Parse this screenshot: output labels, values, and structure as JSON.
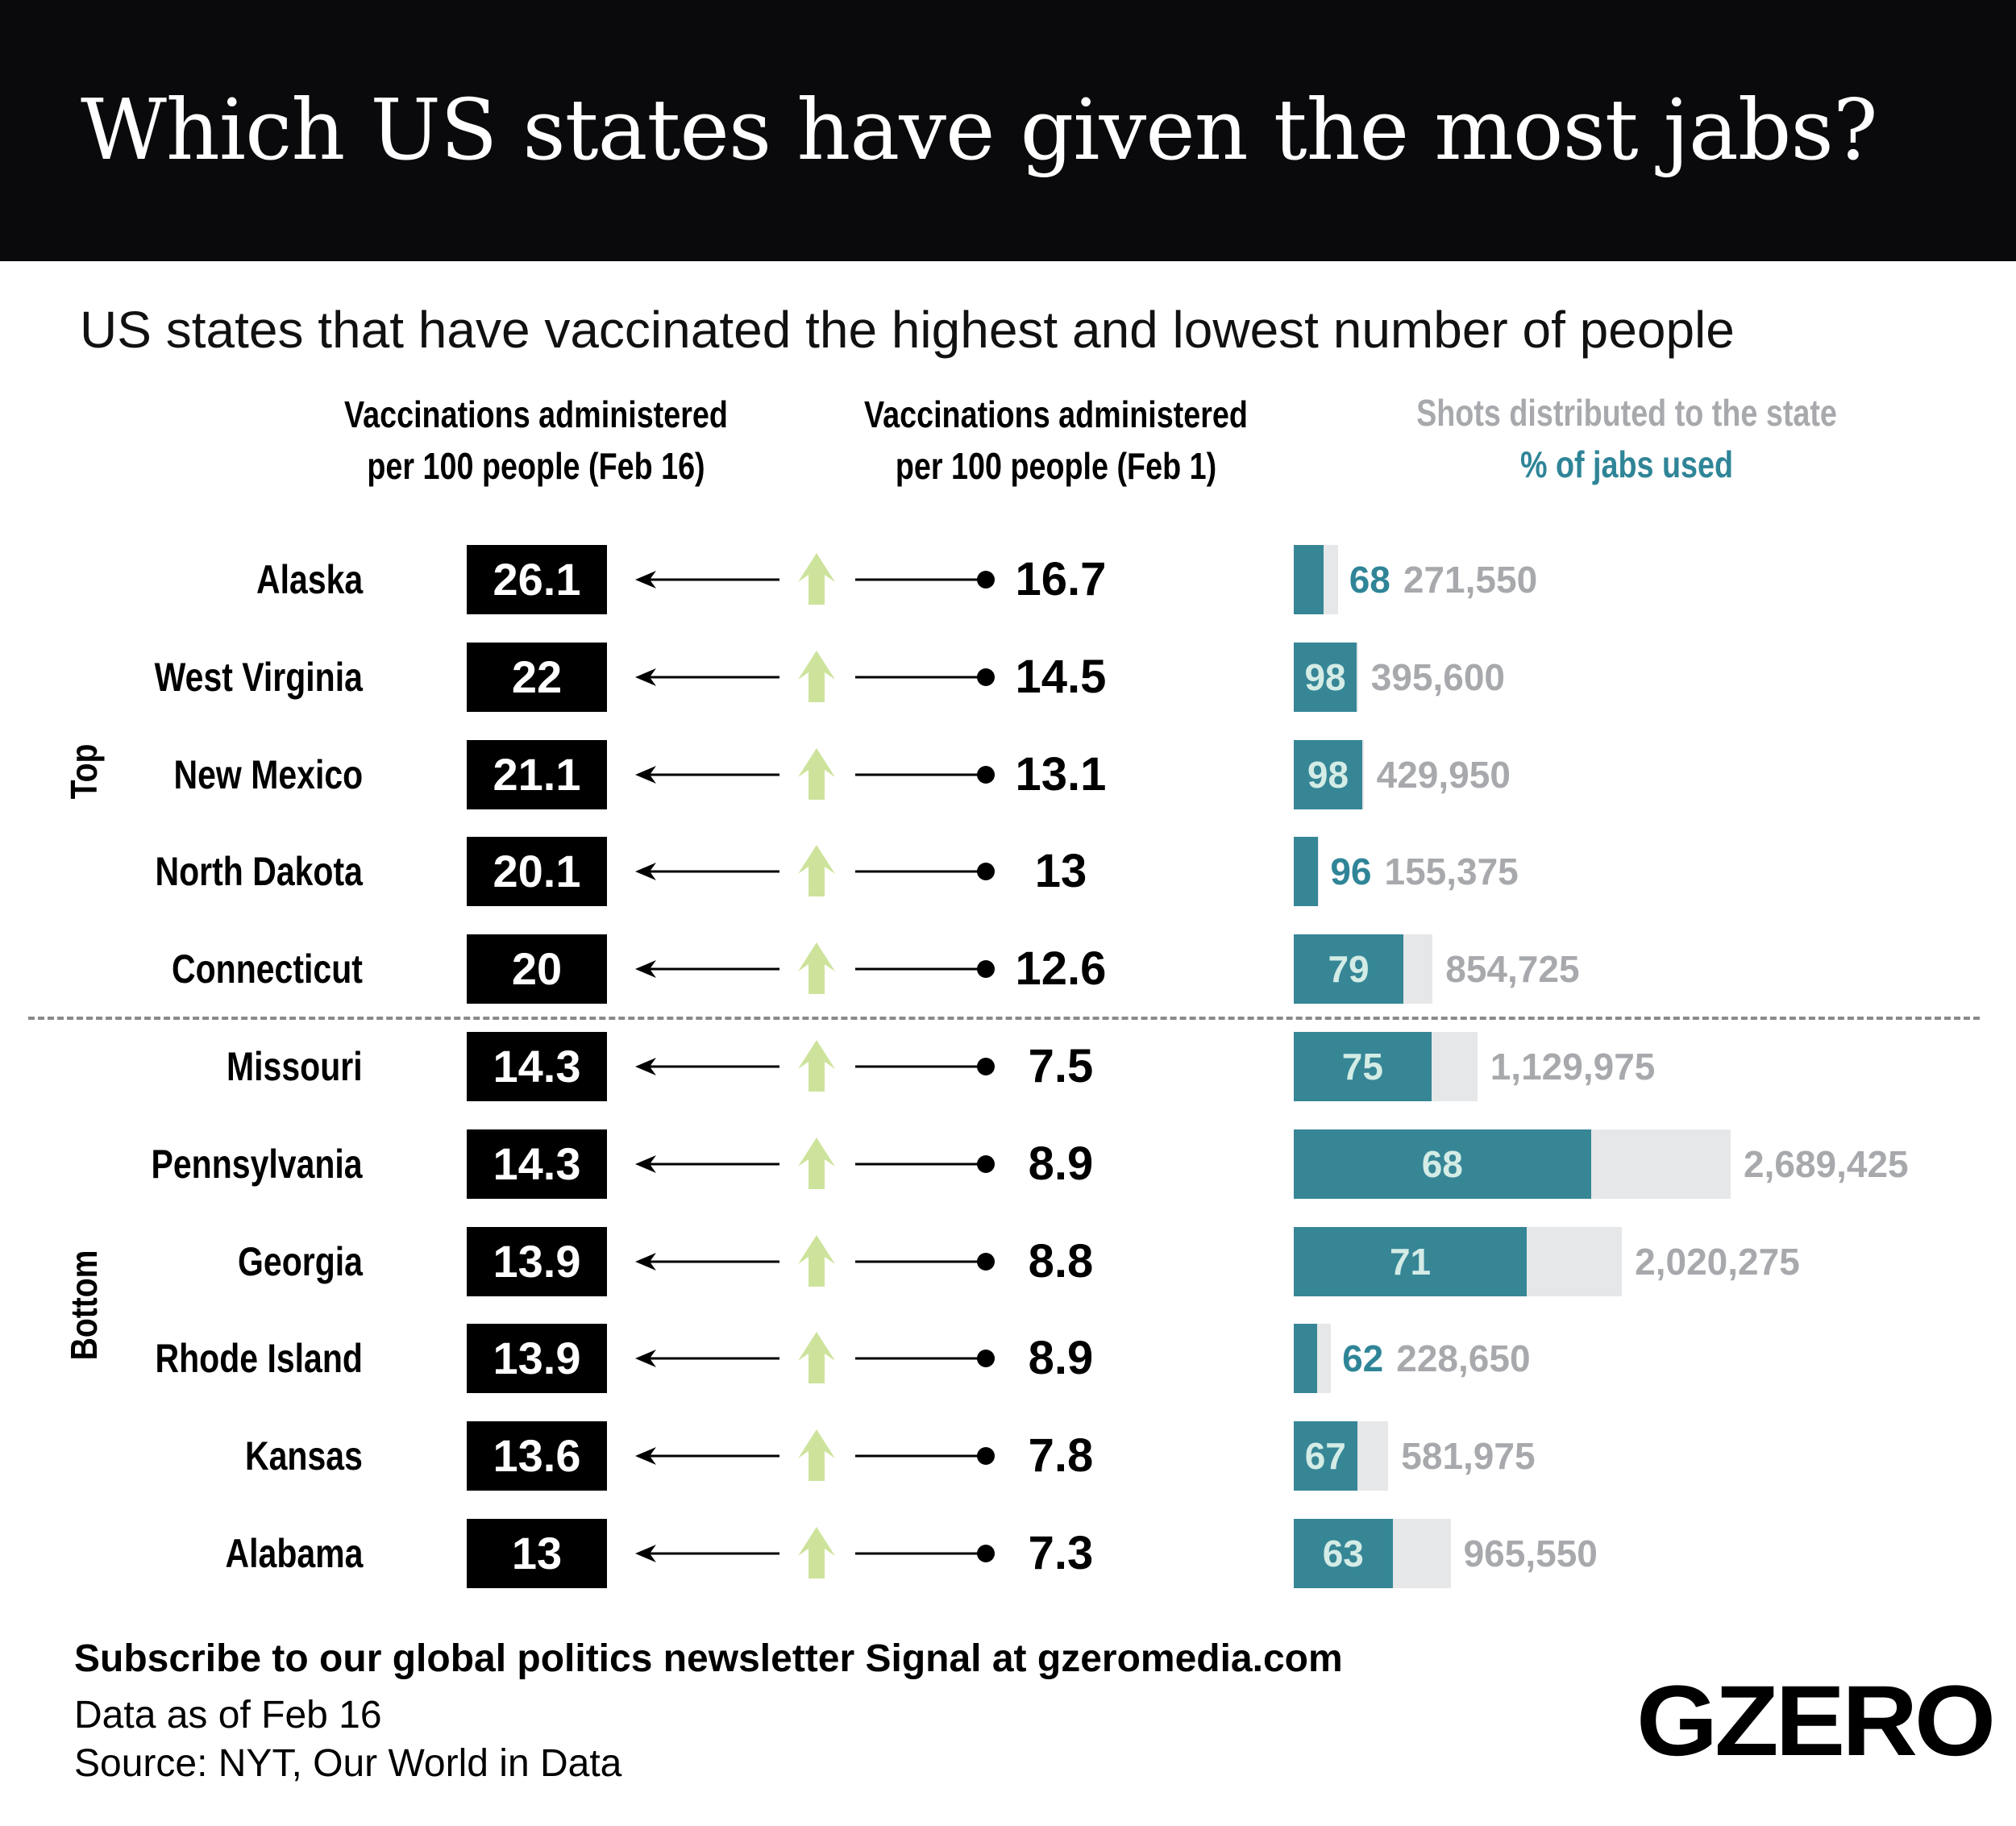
{
  "header": {
    "title": "Which US states have given the most jabs?"
  },
  "subtitle": "US states that have vaccinated the highest and lowest number of people",
  "columns": {
    "feb16": [
      "Vaccinations administered",
      "per 100 people (Feb 16)"
    ],
    "feb1": [
      "Vaccinations administered",
      "per 100 people (Feb 1)"
    ],
    "shots_title": "Shots distributed to the state",
    "pct_title": "% of jabs used"
  },
  "groups": {
    "top": "Top",
    "bottom": "Bottom"
  },
  "colors": {
    "teal": "#368696",
    "grey_bar": "#e6e7e8",
    "grey_text": "#a7a9ac",
    "arrow_green": "#cde39c",
    "header_bg": "#0a0a0c"
  },
  "chart_data": {
    "type": "table",
    "columns": [
      "State",
      "Vaccinations per 100 (Feb 16)",
      "Vaccinations per 100 (Feb 1)",
      "% of jabs used",
      "Shots distributed"
    ],
    "rows": [
      {
        "group": "Top",
        "state": "Alaska",
        "feb16": "26.1",
        "feb1": "16.7",
        "pct": "68",
        "shots": "271,550"
      },
      {
        "group": "Top",
        "state": "West Virginia",
        "feb16": "22",
        "feb1": "14.5",
        "pct": "98",
        "shots": "395,600"
      },
      {
        "group": "Top",
        "state": "New Mexico",
        "feb16": "21.1",
        "feb1": "13.1",
        "pct": "98",
        "shots": "429,950"
      },
      {
        "group": "Top",
        "state": "North Dakota",
        "feb16": "20.1",
        "feb1": "13",
        "pct": "96",
        "shots": "155,375"
      },
      {
        "group": "Top",
        "state": "Connecticut",
        "feb16": "20",
        "feb1": "12.6",
        "pct": "79",
        "shots": "854,725"
      },
      {
        "group": "Bottom",
        "state": "Missouri",
        "feb16": "14.3",
        "feb1": "7.5",
        "pct": "75",
        "shots": "1,129,975"
      },
      {
        "group": "Bottom",
        "state": "Pennsylvania",
        "feb16": "14.3",
        "feb1": "8.9",
        "pct": "68",
        "shots": "2,689,425"
      },
      {
        "group": "Bottom",
        "state": "Georgia",
        "feb16": "13.9",
        "feb1": "8.8",
        "pct": "71",
        "shots": "2,020,275"
      },
      {
        "group": "Bottom",
        "state": "Rhode Island",
        "feb16": "13.9",
        "feb1": "8.9",
        "pct": "62",
        "shots": "228,650"
      },
      {
        "group": "Bottom",
        "state": "Kansas",
        "feb16": "13.6",
        "feb1": "7.8",
        "pct": "67",
        "shots": "581,975"
      },
      {
        "group": "Bottom",
        "state": "Alabama",
        "feb16": "13",
        "feb1": "7.3",
        "pct": "63",
        "shots": "965,550"
      }
    ]
  },
  "footer": {
    "subscribe": "Subscribe to our global politics newsletter Signal at gzeromedia.com",
    "data_as_of": "Data as of Feb 16",
    "source": "Source: NYT, Our World in Data",
    "logo": "GZERO"
  }
}
